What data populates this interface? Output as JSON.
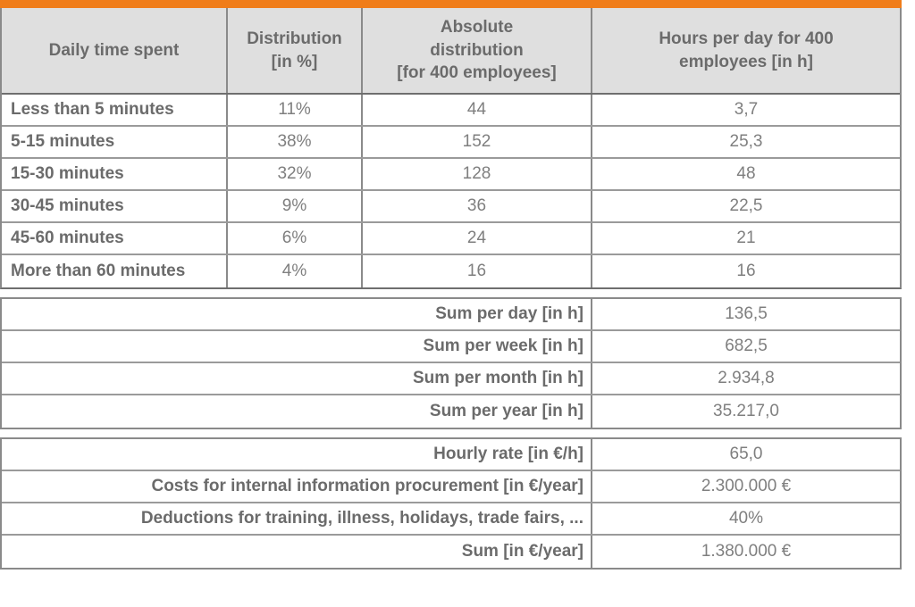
{
  "colors": {
    "accent": "#f07d1a",
    "header_bg": "#dfdfdf",
    "label_text": "#6b6b6b",
    "value_text": "#7f7f7f",
    "grid_border": "#8a8a8a"
  },
  "chart_data": {
    "type": "table",
    "headers": {
      "col1": "Daily time spent",
      "col2": "Distribution\n[in %]",
      "col3": "Absolute\ndistribution\n[for 400 employees]",
      "col4": "Hours per day for 400\nemployees [in h]"
    },
    "rows": [
      {
        "label": "Less than 5 minutes",
        "pct": "11%",
        "abs": "44",
        "hours": "3,7"
      },
      {
        "label": "5-15 minutes",
        "pct": "38%",
        "abs": "152",
        "hours": "25,3"
      },
      {
        "label": "15-30 minutes",
        "pct": "32%",
        "abs": "128",
        "hours": "48"
      },
      {
        "label": "30-45 minutes",
        "pct": "9%",
        "abs": "36",
        "hours": "22,5"
      },
      {
        "label": "45-60 minutes",
        "pct": "6%",
        "abs": "24",
        "hours": "21"
      },
      {
        "label": "More than 60 minutes",
        "pct": "4%",
        "abs": "16",
        "hours": "16"
      }
    ],
    "hour_sums": [
      {
        "label": "Sum per day [in h]",
        "value": "136,5"
      },
      {
        "label": "Sum per week [in h]",
        "value": "682,5"
      },
      {
        "label": "Sum per month [in h]",
        "value": "2.934,8"
      },
      {
        "label": "Sum per year [in h]",
        "value": "35.217,0"
      }
    ],
    "cost_rows": [
      {
        "label": "Hourly rate [in €/h]",
        "value": "65,0"
      },
      {
        "label": "Costs for internal information procurement [in €/year]",
        "value": "2.300.000 €"
      },
      {
        "label": "Deductions for training, illness, holidays, trade fairs, ...",
        "value": "40%"
      },
      {
        "label": "Sum [in €/year]",
        "value": "1.380.000 €"
      }
    ]
  }
}
